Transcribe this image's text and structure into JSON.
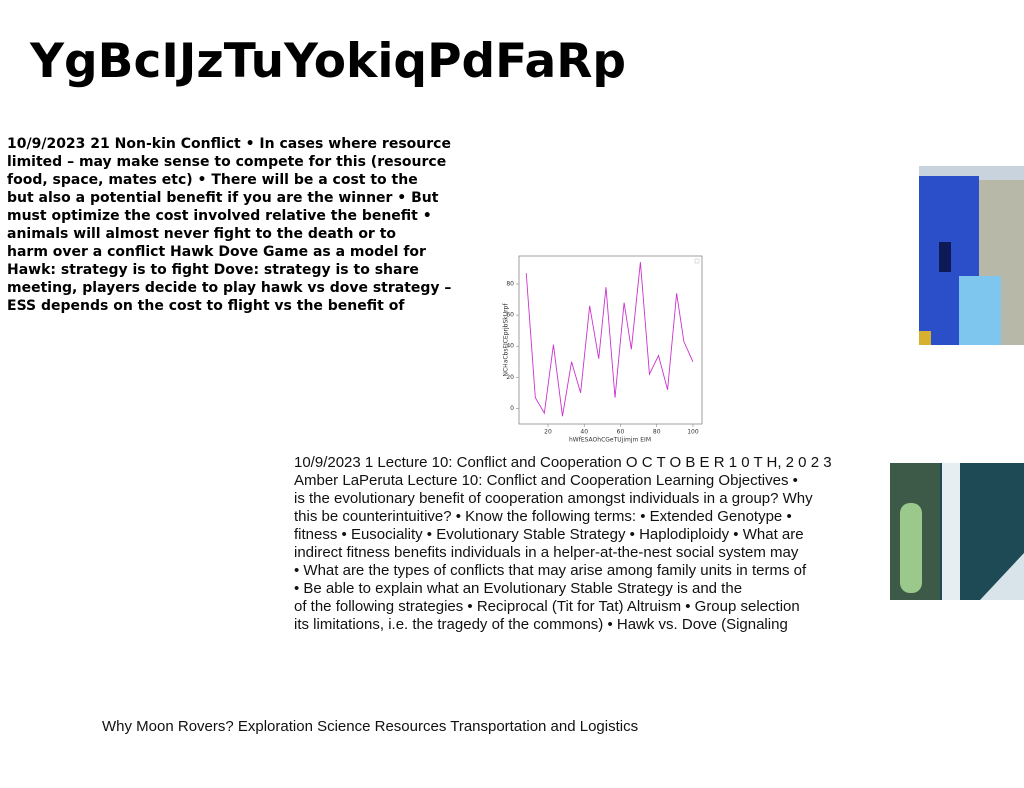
{
  "header": {
    "title": "YgBcIJzTuYokiqPdFaRp"
  },
  "left_text": {
    "lines": [
      "10/9/2023 21 Non-kin Conflict • In cases where resource",
      "limited – may make sense to compete for this (resource",
      "food, space, mates etc) • There will be a cost to the",
      "but also a potential benefit if you are the winner • But",
      "must optimize the cost involved relative the benefit •",
      "animals will almost never fight to the death or to",
      "harm over a conflict Hawk Dove Game as a model for",
      "Hawk: strategy is to fight Dove: strategy is to share",
      "meeting, players decide to play hawk vs dove strategy –",
      "ESS depends on the cost to flight vs the benefit of"
    ]
  },
  "chart_data": {
    "type": "line",
    "x_label": "hWfESAOhCGeTUjimjm EIM",
    "y_label": "NCHaCbsFICEprjbSkUrpf",
    "series": [
      {
        "color": "#cc33cc",
        "x": [
          8,
          13,
          18,
          23,
          28,
          33,
          38,
          43,
          48,
          52,
          57,
          62,
          66,
          71,
          76,
          81,
          86,
          91,
          95,
          100
        ],
        "values": [
          87,
          7,
          -3,
          41,
          -5,
          30,
          10,
          66,
          32,
          78,
          7,
          68,
          38,
          94,
          22,
          34,
          12,
          74,
          43,
          30
        ]
      }
    ],
    "xlim": [
      4,
      105
    ],
    "ylim": [
      -10,
      98
    ],
    "xticks": [
      20,
      40,
      60,
      80,
      100
    ],
    "yticks": [
      0,
      20,
      40,
      60,
      80
    ]
  },
  "middle_text": {
    "lines": [
      "10/9/2023 1 Lecture 10: Conflict and Cooperation O C T O B E R 1 0 T H, 2 0 2 3",
      "Amber LaPeruta Lecture 10: Conflict and Cooperation Learning Objectives •",
      "is the evolutionary benefit of cooperation amongst individuals in a group? Why",
      "this be counterintuitive? • Know the following terms: • Extended Genotype •",
      "fitness • Eusociality • Evolutionary Stable Strategy • Haplodiploidy • What are",
      "indirect fitness benefits individuals in a helper-at-the-nest social system may",
      "• What are the types of conflicts that may arise among family units in terms of",
      "• Be able to explain what an Evolutionary Stable Strategy is and the",
      "of the following strategies • Reciprocal (Tit for Tat) Altruism • Group selection",
      "its limitations, i.e. the tragedy of the commons) • Hawk vs. Dove (Signaling"
    ]
  },
  "footer": {
    "text": "Why Moon Rovers? Exploration Science Resources Transportation and Logistics"
  }
}
